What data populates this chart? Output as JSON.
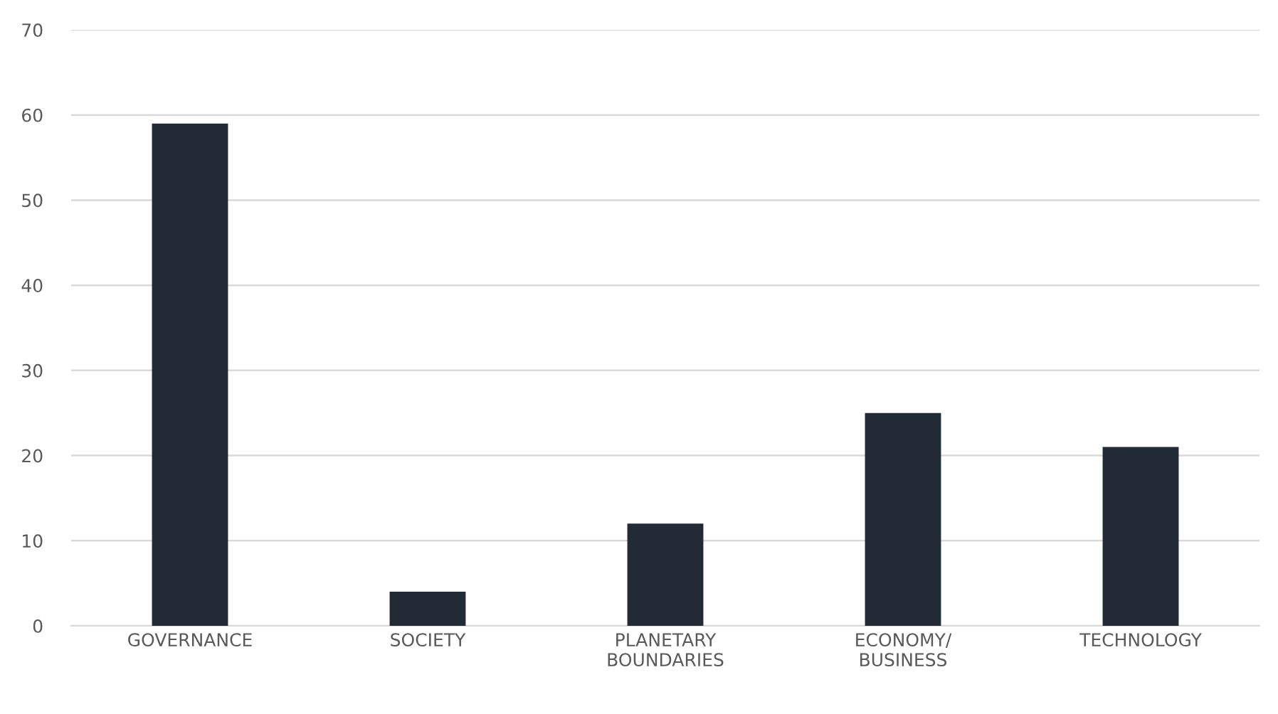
{
  "chart_data": {
    "type": "bar",
    "categories": [
      "GOVERNANCE",
      "SOCIETY",
      "PLANETARY\nBOUNDARIES",
      "ECONOMY/\nBUSINESS",
      "TECHNOLOGY"
    ],
    "values": [
      59,
      4,
      12,
      25,
      21
    ],
    "color": "#222a35",
    "ylim": [
      0,
      70
    ],
    "yticks": [
      0,
      10,
      20,
      30,
      40,
      50,
      60,
      70
    ],
    "grid": "y"
  }
}
